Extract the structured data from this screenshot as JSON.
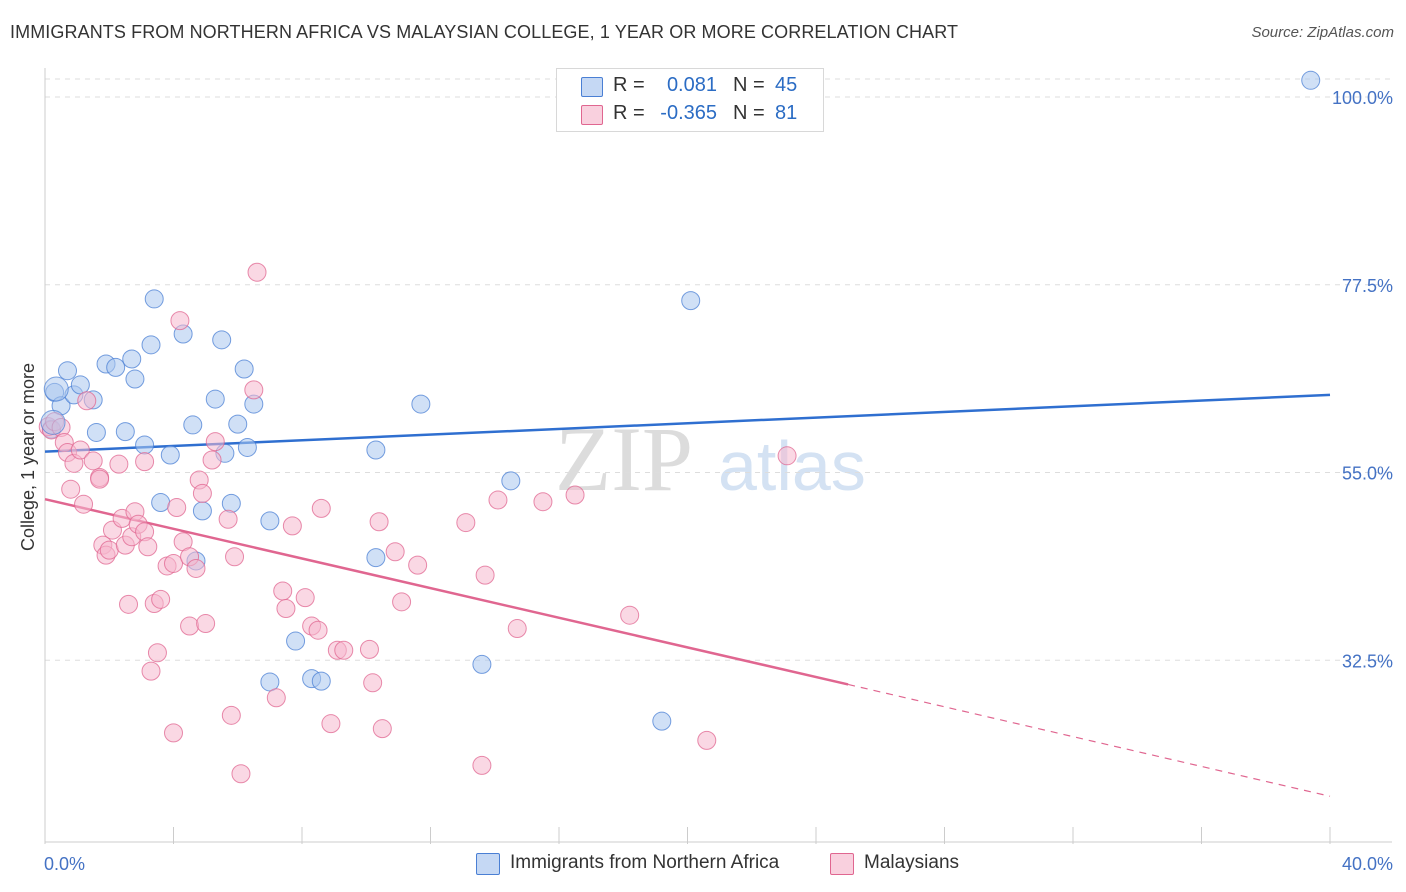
{
  "header": {
    "title": "IMMIGRANTS FROM NORTHERN AFRICA VS MALAYSIAN COLLEGE, 1 YEAR OR MORE CORRELATION CHART",
    "source": "Source: ZipAtlas.com"
  },
  "watermark": {
    "zip": "ZIP",
    "atlas": "atlas"
  },
  "legend": {
    "r_label": "R =",
    "n_label": "N =",
    "series": [
      {
        "name": "Immigrants from Northern Africa",
        "r": "0.081",
        "n": "45"
      },
      {
        "name": "Malaysians",
        "r": "-0.365",
        "n": "81"
      }
    ]
  },
  "chart_data": {
    "type": "scatter",
    "title": "IMMIGRANTS FROM NORTHERN AFRICA VS MALAYSIAN COLLEGE, 1 YEAR OR MORE CORRELATION CHART",
    "xlabel": "",
    "ylabel": "College, 1 year or more",
    "xlim": [
      0,
      40
    ],
    "ylim": [
      10,
      102
    ],
    "x_tick_labels": [
      "0.0%",
      "40.0%"
    ],
    "y_ticks": [
      32.5,
      55.0,
      77.5,
      100.0
    ],
    "y_tick_labels": [
      "32.5%",
      "55.0%",
      "77.5%",
      "100.0%"
    ],
    "grid": true,
    "legend_position": "top-center",
    "colors": {
      "blue": "#4a7fd4",
      "blue_fill": "#a9c6ee",
      "pink": "#e06690",
      "pink_fill": "#f5b8cd"
    },
    "series": [
      {
        "name": "Immigrants from Northern Africa",
        "color": "#4a7fd4",
        "r": 0.081,
        "n": 45,
        "trend": {
          "x": [
            0,
            40
          ],
          "y": [
            57.5,
            64.3
          ],
          "dashed_from": null
        },
        "points": [
          [
            0.2,
            60.2
          ],
          [
            0.3,
            64.6
          ],
          [
            0.5,
            63.0
          ],
          [
            0.7,
            67.2
          ],
          [
            0.9,
            64.3
          ],
          [
            1.1,
            65.5
          ],
          [
            1.5,
            63.7
          ],
          [
            1.6,
            59.8
          ],
          [
            1.9,
            68.0
          ],
          [
            2.2,
            67.6
          ],
          [
            2.5,
            59.9
          ],
          [
            2.7,
            68.6
          ],
          [
            2.8,
            66.2
          ],
          [
            3.1,
            58.3
          ],
          [
            3.3,
            70.3
          ],
          [
            3.4,
            75.8
          ],
          [
            3.6,
            51.4
          ],
          [
            3.9,
            57.1
          ],
          [
            4.3,
            71.6
          ],
          [
            4.6,
            60.7
          ],
          [
            4.9,
            50.4
          ],
          [
            4.7,
            44.4
          ],
          [
            5.3,
            63.8
          ],
          [
            5.6,
            57.3
          ],
          [
            5.5,
            70.9
          ],
          [
            5.8,
            51.3
          ],
          [
            6.0,
            60.8
          ],
          [
            6.3,
            58.0
          ],
          [
            6.2,
            67.4
          ],
          [
            6.5,
            63.2
          ],
          [
            7.0,
            49.2
          ],
          [
            7.0,
            29.9
          ],
          [
            7.8,
            34.8
          ],
          [
            8.3,
            30.3
          ],
          [
            8.6,
            30.0
          ],
          [
            10.3,
            44.8
          ],
          [
            10.3,
            57.7
          ],
          [
            11.7,
            63.2
          ],
          [
            13.6,
            32.0
          ],
          [
            14.5,
            54.0
          ],
          [
            19.2,
            25.2
          ],
          [
            20.1,
            75.6
          ],
          [
            39.4,
            102.0
          ]
        ]
      },
      {
        "name": "Malaysians",
        "color": "#e06690",
        "r": -0.365,
        "n": 81,
        "trend": {
          "x": [
            0,
            25,
            40
          ],
          "y": [
            51.8,
            29.6,
            16.2
          ],
          "dashed_from": 25
        },
        "points": [
          [
            0.1,
            60.5
          ],
          [
            0.2,
            60.1
          ],
          [
            0.3,
            61.1
          ],
          [
            0.5,
            60.4
          ],
          [
            0.6,
            58.6
          ],
          [
            0.7,
            57.4
          ],
          [
            0.8,
            53.0
          ],
          [
            0.9,
            56.1
          ],
          [
            1.1,
            57.7
          ],
          [
            1.2,
            51.2
          ],
          [
            1.3,
            63.6
          ],
          [
            1.5,
            56.4
          ],
          [
            1.7,
            54.4
          ],
          [
            1.7,
            54.2
          ],
          [
            1.8,
            46.3
          ],
          [
            1.9,
            45.1
          ],
          [
            2.0,
            45.7
          ],
          [
            2.1,
            48.1
          ],
          [
            2.3,
            56.0
          ],
          [
            2.4,
            49.5
          ],
          [
            2.5,
            46.3
          ],
          [
            2.6,
            39.2
          ],
          [
            2.7,
            47.3
          ],
          [
            2.8,
            50.3
          ],
          [
            2.9,
            48.8
          ],
          [
            3.1,
            47.9
          ],
          [
            3.1,
            56.3
          ],
          [
            3.2,
            46.1
          ],
          [
            3.3,
            31.2
          ],
          [
            3.4,
            39.3
          ],
          [
            3.5,
            33.4
          ],
          [
            3.6,
            39.8
          ],
          [
            3.8,
            43.8
          ],
          [
            4.0,
            44.1
          ],
          [
            4.0,
            23.8
          ],
          [
            4.1,
            50.8
          ],
          [
            4.2,
            73.2
          ],
          [
            4.3,
            46.7
          ],
          [
            4.5,
            44.9
          ],
          [
            4.5,
            36.6
          ],
          [
            4.7,
            43.5
          ],
          [
            4.8,
            54.1
          ],
          [
            4.9,
            52.5
          ],
          [
            5.0,
            36.9
          ],
          [
            5.2,
            56.5
          ],
          [
            5.3,
            58.7
          ],
          [
            5.7,
            49.4
          ],
          [
            5.8,
            25.9
          ],
          [
            5.9,
            44.9
          ],
          [
            6.1,
            18.9
          ],
          [
            6.5,
            64.9
          ],
          [
            6.6,
            79.0
          ],
          [
            7.2,
            28.0
          ],
          [
            7.4,
            40.8
          ],
          [
            7.5,
            38.7
          ],
          [
            7.7,
            48.6
          ],
          [
            8.1,
            40.0
          ],
          [
            8.3,
            36.6
          ],
          [
            8.5,
            36.1
          ],
          [
            8.6,
            50.7
          ],
          [
            8.9,
            24.9
          ],
          [
            9.1,
            33.7
          ],
          [
            9.3,
            33.7
          ],
          [
            10.1,
            33.8
          ],
          [
            10.2,
            29.8
          ],
          [
            10.4,
            49.1
          ],
          [
            10.5,
            24.3
          ],
          [
            10.9,
            45.5
          ],
          [
            11.1,
            39.5
          ],
          [
            11.6,
            43.9
          ],
          [
            13.1,
            49.0
          ],
          [
            13.6,
            19.9
          ],
          [
            13.7,
            42.7
          ],
          [
            14.1,
            51.7
          ],
          [
            14.7,
            36.3
          ],
          [
            15.5,
            51.5
          ],
          [
            16.5,
            52.3
          ],
          [
            18.2,
            37.9
          ],
          [
            20.6,
            22.9
          ],
          [
            23.1,
            57.0
          ]
        ]
      }
    ]
  }
}
